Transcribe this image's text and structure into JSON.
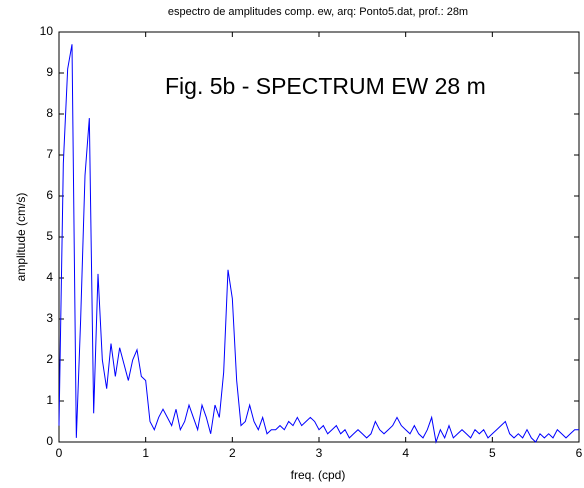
{
  "chart_data": {
    "type": "line",
    "title": "espectro de amplitudes comp. ew, arq: Ponto5.dat, prof.: 28m",
    "annotation": "Fig. 5b - SPECTRUM EW 28 m",
    "xlabel": "freq. (cpd)",
    "ylabel": "amplitude (cm/s)",
    "color": "#0000ff",
    "x": [
      0,
      0.05,
      0.1,
      0.15,
      0.2,
      0.25,
      0.3,
      0.35,
      0.4,
      0.45,
      0.5,
      0.55,
      0.6,
      0.65,
      0.7,
      0.75,
      0.8,
      0.85,
      0.9,
      0.95,
      1,
      1.05,
      1.1,
      1.15,
      1.2,
      1.25,
      1.3,
      1.35,
      1.4,
      1.45,
      1.5,
      1.55,
      1.6,
      1.65,
      1.7,
      1.75,
      1.8,
      1.85,
      1.9,
      1.95,
      2,
      2.05,
      2.1,
      2.15,
      2.2,
      2.25,
      2.3,
      2.35,
      2.4,
      2.45,
      2.5,
      2.55,
      2.6,
      2.65,
      2.7,
      2.75,
      2.8,
      2.85,
      2.9,
      2.95,
      3,
      3.05,
      3.1,
      3.15,
      3.2,
      3.25,
      3.3,
      3.35,
      3.4,
      3.45,
      3.5,
      3.55,
      3.6,
      3.65,
      3.7,
      3.75,
      3.8,
      3.85,
      3.9,
      3.95,
      4,
      4.05,
      4.1,
      4.15,
      4.2,
      4.25,
      4.3,
      4.35,
      4.4,
      4.45,
      4.5,
      4.55,
      4.6,
      4.65,
      4.7,
      4.75,
      4.8,
      4.85,
      4.9,
      4.95,
      5,
      5.05,
      5.1,
      5.15,
      5.2,
      5.25,
      5.3,
      5.35,
      5.4,
      5.45,
      5.5,
      5.55,
      5.6,
      5.65,
      5.7,
      5.75,
      5.8,
      5.85,
      5.9,
      5.95,
      6
    ],
    "values": [
      0.4,
      6.8,
      9.1,
      9.7,
      0.1,
      3.0,
      6.5,
      7.9,
      0.7,
      4.1,
      2.0,
      1.3,
      2.4,
      1.6,
      2.3,
      1.9,
      1.5,
      2.0,
      2.25,
      1.6,
      1.5,
      0.5,
      0.3,
      0.6,
      0.8,
      0.6,
      0.4,
      0.8,
      0.3,
      0.5,
      0.9,
      0.6,
      0.3,
      0.9,
      0.6,
      0.2,
      0.9,
      0.6,
      1.7,
      4.2,
      3.5,
      1.5,
      0.4,
      0.5,
      0.9,
      0.5,
      0.3,
      0.6,
      0.2,
      0.3,
      0.3,
      0.4,
      0.3,
      0.5,
      0.4,
      0.6,
      0.4,
      0.5,
      0.6,
      0.5,
      0.3,
      0.4,
      0.2,
      0.3,
      0.4,
      0.2,
      0.3,
      0.1,
      0.2,
      0.3,
      0.2,
      0.1,
      0.2,
      0.5,
      0.3,
      0.2,
      0.3,
      0.4,
      0.6,
      0.4,
      0.3,
      0.2,
      0.4,
      0.2,
      0.1,
      0.3,
      0.6,
      0.0,
      0.3,
      0.1,
      0.4,
      0.1,
      0.2,
      0.3,
      0.2,
      0.1,
      0.3,
      0.2,
      0.3,
      0.1,
      0.2,
      0.3,
      0.4,
      0.5,
      0.2,
      0.1,
      0.2,
      0.1,
      0.3,
      0.1,
      0.0,
      0.2,
      0.1,
      0.2,
      0.1,
      0.3,
      0.2,
      0.1,
      0.2,
      0.3,
      0.3
    ],
    "xlim": [
      0,
      6
    ],
    "xticks": [
      0,
      1,
      2,
      3,
      4,
      5,
      6
    ],
    "ylim": [
      0,
      10
    ],
    "yticks": [
      0,
      1,
      2,
      3,
      4,
      5,
      6,
      7,
      8,
      9,
      10
    ]
  }
}
